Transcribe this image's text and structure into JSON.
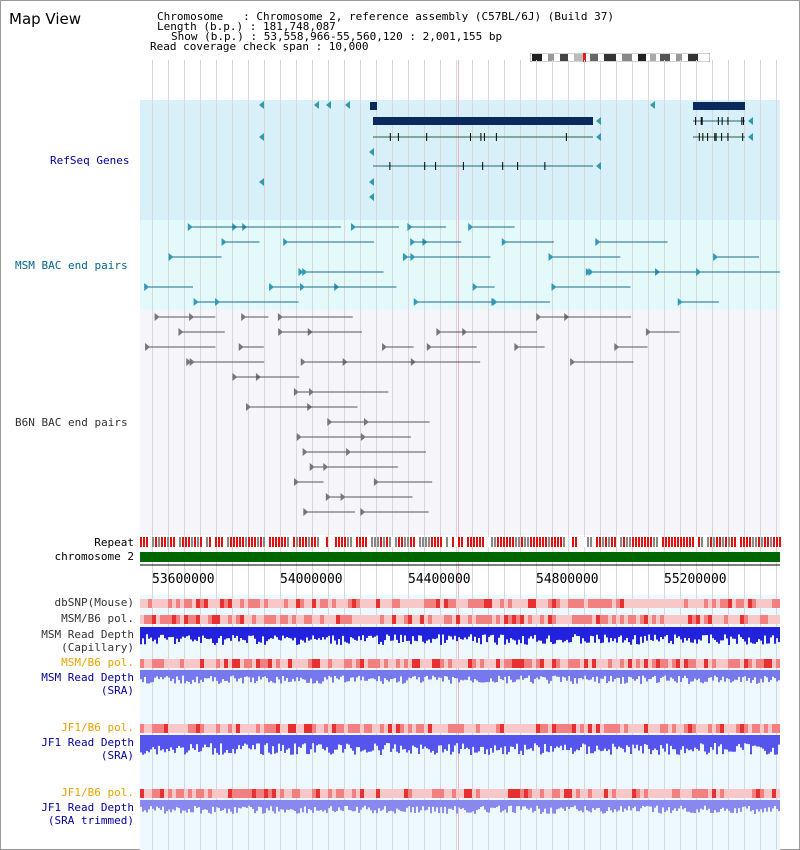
{
  "title": "Map View",
  "info": {
    "line1": "Chromosome   : Chromosome 2, reference assembly (C57BL/6J) (Build 37)",
    "line2": "Length (b.p.) : 181,748,087",
    "line3": "Show (b.p.) : 53,558,966-55,560,120 : 2,001,155 bp",
    "line4": "Read coverage check span : 10,000"
  },
  "tracks": {
    "refseq": "RefSeq Genes",
    "msm_bac": "MSM BAC end pairs",
    "b6n_bac": "B6N BAC end pairs",
    "repeat": "Repeat",
    "chrom": "chromosome 2",
    "dbsnp": "dbSNP(Mouse)",
    "msm_b6_pol": "MSM/B6 pol.",
    "msm_depth_cap_1": "MSM Read Depth",
    "msm_depth_cap_2": "(Capillary)",
    "msm_b6_pol2": "MSM/B6 pol.",
    "msm_depth_sra_1": "MSM Read Depth",
    "msm_depth_sra_2": "(SRA)",
    "jf1_b6_pol": "JF1/B6 pol.",
    "jf1_depth_sra_1": "JF1 Read Depth",
    "jf1_depth_sra_2": "(SRA)",
    "jf1_b6_pol2": "JF1/B6 pol.",
    "jf1_depth_trim_1": "JF1 Read Depth",
    "jf1_depth_trim_2": "(SRA trimmed)"
  },
  "axis": {
    "ticks": [
      "53600000",
      "54000000",
      "54400000",
      "54800000",
      "55200000"
    ]
  },
  "colors": {
    "label_blue": "#000099",
    "label_teal": "#006688",
    "label_orange": "#e8a000",
    "refseq_bg": "#d8f0fa",
    "bac_bg": "#e4fafa",
    "gene_dark": "#0a2a5c",
    "chrom_green": "#006600"
  }
}
